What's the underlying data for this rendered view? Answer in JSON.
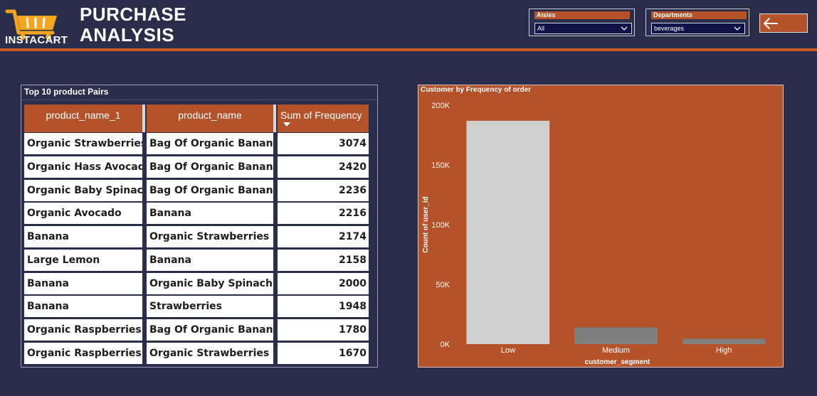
{
  "header": {
    "logo_text": "INSTACART",
    "title_line1": "PURCHASE",
    "title_line2": "ANALYSIS",
    "icons": {
      "logo": "shopping-cart-icon",
      "back": "arrow-left-icon"
    }
  },
  "filters": {
    "aisles": {
      "label": "Aisles",
      "value": "All"
    },
    "departments": {
      "label": "Departments",
      "value": "beverages"
    }
  },
  "table": {
    "title": "Top 10 product Pairs",
    "columns": [
      "product_name_1",
      "product_name",
      "Sum of Frequency"
    ],
    "sorted_column": "Sum of Frequency",
    "rows": [
      [
        "Organic Strawberries",
        "Bag Of Organic Bananas",
        "3074"
      ],
      [
        "Organic Hass Avocado",
        "Bag Of Organic Bananas",
        "2420"
      ],
      [
        "Organic Baby Spinach",
        "Bag Of Organic Bananas",
        "2236"
      ],
      [
        "Organic Avocado",
        "Banana",
        "2216"
      ],
      [
        "Banana",
        "Organic Strawberries",
        "2174"
      ],
      [
        "Large Lemon",
        "Banana",
        "2158"
      ],
      [
        "Banana",
        "Organic Baby Spinach",
        "2000"
      ],
      [
        "Banana",
        "Strawberries",
        "1948"
      ],
      [
        "Organic Raspberries",
        "Bag Of Organic Bananas",
        "1780"
      ],
      [
        "Organic Raspberries",
        "Organic Strawberries",
        "1670"
      ]
    ]
  },
  "colors": {
    "background": "#2b2e4a",
    "accent": "#b4532a",
    "accent_line": "#c65a24",
    "bar_low": "#cfcfcf",
    "bar_other": "#7f7f7f"
  },
  "chart_data": {
    "type": "bar",
    "title": "Customer by Frequency of order",
    "xlabel": "customer_segment",
    "ylabel": "Count of user_id",
    "categories": [
      "Low",
      "Medium",
      "High"
    ],
    "values": [
      187000,
      14000,
      4500
    ],
    "bar_colors": [
      "#cfcfcf",
      "#7f7f7f",
      "#7f7f7f"
    ],
    "ylim": [
      0,
      200000
    ],
    "yticks": [
      0,
      50000,
      100000,
      150000,
      200000
    ],
    "ytick_labels": [
      "0K",
      "50K",
      "100K",
      "150K",
      "200K"
    ],
    "grid": false
  }
}
